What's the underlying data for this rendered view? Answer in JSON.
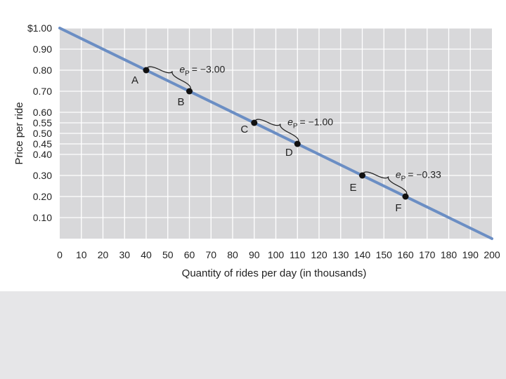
{
  "chart_data": {
    "type": "line",
    "xlabel": "Quantity of rides per day (in thousands)",
    "ylabel": "Price per ride",
    "xlim": [
      0,
      200
    ],
    "ylim": [
      0,
      1.0
    ],
    "x_ticks": [
      0,
      10,
      20,
      30,
      40,
      50,
      60,
      70,
      80,
      90,
      100,
      110,
      120,
      130,
      140,
      150,
      160,
      170,
      180,
      190,
      200
    ],
    "y_ticks": [
      {
        "value": 1.0,
        "label": "$1.00"
      },
      {
        "value": 0.9,
        "label": "0.90"
      },
      {
        "value": 0.8,
        "label": "0.80"
      },
      {
        "value": 0.7,
        "label": "0.70"
      },
      {
        "value": 0.6,
        "label": "0.60"
      },
      {
        "value": 0.55,
        "label": "0.55"
      },
      {
        "value": 0.5,
        "label": "0.50"
      },
      {
        "value": 0.45,
        "label": "0.45"
      },
      {
        "value": 0.4,
        "label": "0.40"
      },
      {
        "value": 0.3,
        "label": "0.30"
      },
      {
        "value": 0.2,
        "label": "0.20"
      },
      {
        "value": 0.1,
        "label": "0.10"
      }
    ],
    "series": [
      {
        "x": [
          0,
          200
        ],
        "y": [
          1.0,
          0.0
        ],
        "color": "#6b8ec4"
      }
    ],
    "points": [
      {
        "label": "A",
        "x": 40,
        "y": 0.8
      },
      {
        "label": "B",
        "x": 60,
        "y": 0.7
      },
      {
        "label": "C",
        "x": 90,
        "y": 0.55
      },
      {
        "label": "D",
        "x": 110,
        "y": 0.45
      },
      {
        "label": "E",
        "x": 140,
        "y": 0.3
      },
      {
        "label": "F",
        "x": 160,
        "y": 0.2
      }
    ],
    "elasticities": [
      {
        "from": "A",
        "to": "B",
        "symbol": "e",
        "subscript": "P",
        "value": "= −3.00"
      },
      {
        "from": "C",
        "to": "D",
        "symbol": "e",
        "subscript": "P",
        "value": "= −1.00"
      },
      {
        "from": "E",
        "to": "F",
        "symbol": "e",
        "subscript": "P",
        "value": "= −0.33"
      }
    ],
    "grid": true
  },
  "colors": {
    "plot_background": "#d8d8da",
    "grid": "#ffffff",
    "line": "#6b8ec4",
    "point": "#111111",
    "bottom_panel": "#e6e6e8"
  }
}
